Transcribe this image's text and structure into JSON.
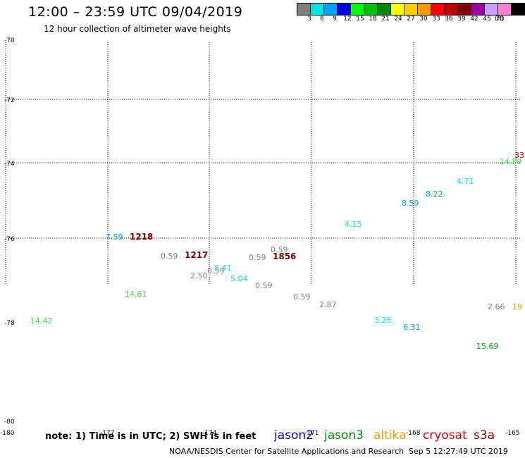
{
  "header": {
    "title": "12:00 – 23:59 UTC 09/04/2019",
    "subtitle": "12 hour collection of altimeter wave heights"
  },
  "legend": {
    "unit": "(ft)",
    "swatches": [
      {
        "color": "#7f7f7f",
        "label": "3"
      },
      {
        "color": "#00e5e5",
        "label": "6"
      },
      {
        "color": "#00a0ff",
        "label": "9"
      },
      {
        "color": "#0000e0",
        "label": "12"
      },
      {
        "color": "#00ff00",
        "label": "15"
      },
      {
        "color": "#00c000",
        "label": "18"
      },
      {
        "color": "#008800",
        "label": "21"
      },
      {
        "color": "#ffff00",
        "label": "24"
      },
      {
        "color": "#ffd000",
        "label": "27"
      },
      {
        "color": "#ff9900",
        "label": "30"
      },
      {
        "color": "#ff0000",
        "label": "33"
      },
      {
        "color": "#c00000",
        "label": "36"
      },
      {
        "color": "#800000",
        "label": "39"
      },
      {
        "color": "#a000a0",
        "label": "42"
      },
      {
        "color": "#c8a0ff",
        "label": "45"
      },
      {
        "color": "#ff80d0",
        "label": "70"
      },
      {
        "color": "#000000",
        "label": ""
      }
    ]
  },
  "axes": {
    "lat_labels": [
      "-70",
      "-72",
      "-74",
      "-76",
      "-78",
      "-80"
    ],
    "lon_labels": [
      "-180",
      "-177",
      "-174",
      "-171",
      "-168",
      "-165"
    ]
  },
  "measurements": [
    {
      "text": "7.59",
      "color": "#00a0ff"
    },
    {
      "text": "0.59",
      "color": "#7f7f7f"
    },
    {
      "text": "2.50",
      "color": "#7f7f7f"
    },
    {
      "text": "0.59",
      "color": "#7f7f7f"
    },
    {
      "text": "5.41",
      "color": "#00e5e5"
    },
    {
      "text": "5.04",
      "color": "#00e5e5"
    },
    {
      "text": "0.59",
      "color": "#7f7f7f"
    },
    {
      "text": "0.59",
      "color": "#7f7f7f"
    },
    {
      "text": "0.59",
      "color": "#7f7f7f"
    },
    {
      "text": "0.59",
      "color": "#7f7f7f"
    },
    {
      "text": "2.87",
      "color": "#7f7f7f"
    },
    {
      "text": "14.61",
      "color": "#44dd44"
    },
    {
      "text": "14.42",
      "color": "#44dd44"
    },
    {
      "text": "4.15",
      "color": "#00e5e5"
    },
    {
      "text": "8.59",
      "color": "#00a0ff"
    },
    {
      "text": "8.22",
      "color": "#00a0ff"
    },
    {
      "text": "4.71",
      "color": "#00e5e5"
    },
    {
      "text": "14.89",
      "color": "#44dd44"
    },
    {
      "text": "3.26",
      "color": "#00e5e5"
    },
    {
      "text": "6.31",
      "color": "#00a0ff"
    },
    {
      "text": "2.66",
      "color": "#7f7f7f"
    },
    {
      "text": "15.69",
      "color": "#00aa00"
    },
    {
      "text": "19",
      "color": "#ff9900"
    },
    {
      "text": "33",
      "color": "#cc0000"
    }
  ],
  "pass_times": [
    "1218",
    "1217",
    "1856"
  ],
  "footer": {
    "note": "note: 1) Time is in UTC; 2) SWH is in feet",
    "satellites": [
      {
        "name": "jason2",
        "color": "#0000cc"
      },
      {
        "name": "jason3",
        "color": "#008800"
      },
      {
        "name": "altika",
        "color": "#ff9900"
      },
      {
        "name": "cryosat",
        "color": "#dd0000"
      },
      {
        "name": "s3a",
        "color": "#7a0000"
      }
    ],
    "credit": "NOAA/NESDIS Center for Satellite Applications and Research",
    "timestamp": "Sep  5 12:27:49 UTC 2019"
  }
}
